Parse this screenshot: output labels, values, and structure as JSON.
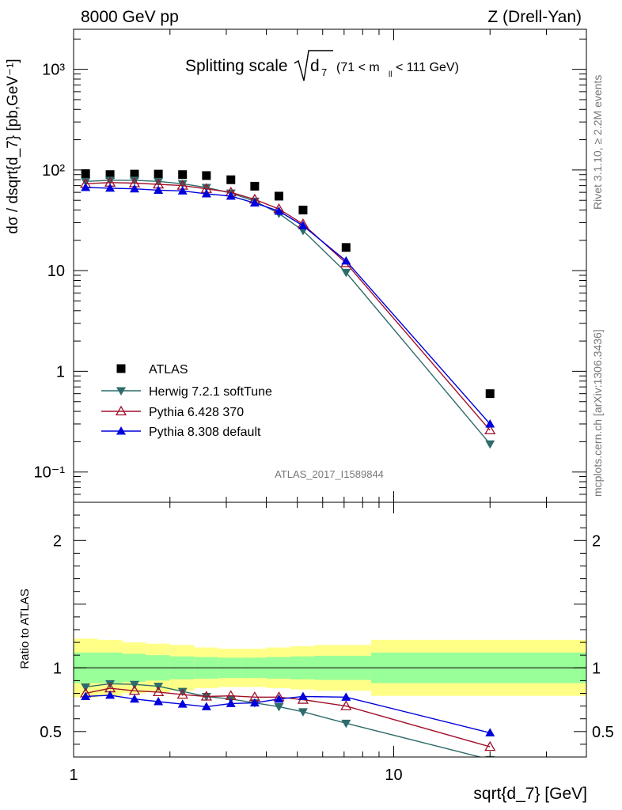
{
  "header": {
    "left": "8000 GeV pp",
    "right": "Z (Drell-Yan)",
    "title_prefix": "Splitting scale",
    "title_var": "d",
    "title_sub": "7",
    "title_cut": "(71 < m",
    "title_cut_sub": "ll",
    "title_cut_end": " < 111 GeV)"
  },
  "side": {
    "rivet": "Rivet 3.1.10, ≥ 2.2M events",
    "mcplots": "mcplots.cern.ch [arXiv:1306.3436]"
  },
  "watermark": "ATLAS_2017_I1589844",
  "colors": {
    "atlas": "#000000",
    "herwig": "#2e6b6b",
    "pythia6": "#a0102a",
    "pythia8": "#0000dd",
    "band_inner": "#99ff99",
    "band_outer": "#ffff88"
  },
  "chart_data": [
    {
      "type": "scatter",
      "log_x": true,
      "log_y": true,
      "xlim": [
        1,
        40
      ],
      "ylim": [
        0.05,
        2500
      ],
      "ylabel": "dσ / dsqrt{d_7} [pb,GeV⁻¹]",
      "ytick_labels": [
        "10⁻¹",
        "1",
        "10",
        "10²",
        "10³"
      ],
      "legend_position": "bottom-left",
      "x": [
        1.09,
        1.3,
        1.55,
        1.84,
        2.19,
        2.6,
        3.1,
        3.68,
        4.38,
        5.21,
        7.1,
        20.0
      ],
      "series": [
        {
          "name": "ATLAS",
          "marker": "square",
          "values": [
            92,
            90,
            91,
            91,
            90,
            88,
            80,
            69,
            55,
            40,
            17,
            0.6
          ]
        },
        {
          "name": "Herwig 7.2.1 softTune",
          "marker": "triangle-down",
          "values": [
            77,
            79,
            79,
            77,
            73,
            67,
            59,
            49,
            37,
            25,
            9.6,
            0.19
          ]
        },
        {
          "name": "Pythia 6.428 370",
          "marker": "triangle-up-open",
          "values": [
            73,
            75,
            74,
            72,
            70,
            65,
            60,
            51,
            41,
            29,
            11.9,
            0.26
          ]
        },
        {
          "name": "Pythia 8.308 default",
          "marker": "triangle-up",
          "values": [
            67,
            66,
            65,
            63,
            62,
            58,
            55,
            47,
            39,
            28,
            12.5,
            0.3
          ]
        }
      ]
    },
    {
      "type": "line",
      "log_x": true,
      "xlim": [
        1,
        40
      ],
      "ylim": [
        0.3,
        2.3
      ],
      "xlabel": "sqrt{d_7} [GeV]",
      "ylabel": "Ratio to ATLAS",
      "ytick_labels": [
        "0.5",
        "1",
        "2"
      ],
      "xtick_labels": [
        "1",
        "10"
      ],
      "x": [
        1.09,
        1.3,
        1.55,
        1.84,
        2.19,
        2.6,
        3.1,
        3.68,
        4.38,
        5.21,
        7.1,
        20.0
      ],
      "bins": [
        1.0,
        1.19,
        1.42,
        1.68,
        2.0,
        2.38,
        2.83,
        3.36,
        4.0,
        4.76,
        5.66,
        8.5,
        40
      ],
      "band_inner": [
        0.12,
        0.12,
        0.11,
        0.1,
        0.09,
        0.085,
        0.08,
        0.08,
        0.085,
        0.09,
        0.095,
        0.12
      ],
      "band_outer": [
        0.23,
        0.22,
        0.2,
        0.19,
        0.18,
        0.16,
        0.15,
        0.15,
        0.16,
        0.17,
        0.18,
        0.22
      ],
      "series": [
        {
          "name": "Herwig 7.2.1 softTune",
          "values": [
            0.85,
            0.875,
            0.87,
            0.855,
            0.815,
            0.775,
            0.755,
            0.725,
            0.695,
            0.655,
            0.565,
            0.28
          ]
        },
        {
          "name": "Pythia 6.428 370",
          "values": [
            0.8,
            0.84,
            0.82,
            0.81,
            0.79,
            0.775,
            0.78,
            0.77,
            0.77,
            0.75,
            0.7,
            0.38
          ]
        },
        {
          "name": "Pythia 8.308 default",
          "values": [
            0.775,
            0.785,
            0.755,
            0.735,
            0.715,
            0.695,
            0.72,
            0.725,
            0.755,
            0.775,
            0.77,
            0.49
          ]
        }
      ]
    }
  ]
}
